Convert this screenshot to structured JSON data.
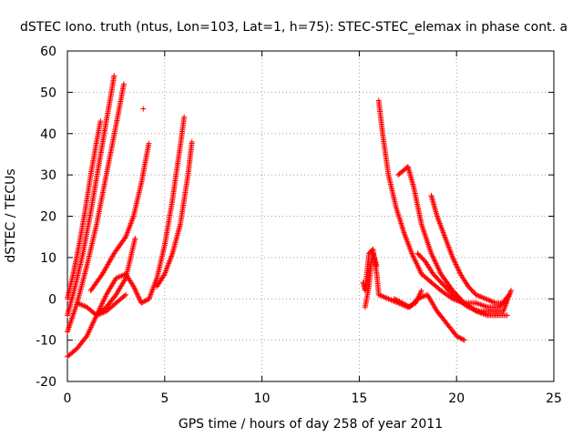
{
  "chart_data": {
    "type": "scatter",
    "title": "dSTEC Iono. truth (ntus, Lon=103, Lat=1, h=75): STEC-STEC_elemax in phase cont. a",
    "xlabel": "GPS time / hours of day 258 of year 2011",
    "ylabel": "dSTEC  / TECUs",
    "xlim": [
      0,
      25
    ],
    "ylim": [
      -20,
      60
    ],
    "x_ticks": [
      0,
      5,
      10,
      15,
      20,
      25
    ],
    "y_ticks": [
      -20,
      -10,
      0,
      10,
      20,
      30,
      40,
      50,
      60
    ],
    "grid": true,
    "marker": "+",
    "color": "#ff0000",
    "series": [
      {
        "x": [
          0.0,
          0.3,
          0.6,
          0.9,
          1.2,
          1.5,
          1.7
        ],
        "y": [
          0,
          6,
          13,
          21,
          30,
          38,
          43
        ]
      },
      {
        "x": [
          0.0,
          0.4,
          0.8,
          1.2,
          1.6,
          2.0,
          2.3,
          2.4
        ],
        "y": [
          -4,
          3,
          11,
          21,
          32,
          43,
          51,
          54
        ]
      },
      {
        "x": [
          0.0,
          0.5,
          1.0,
          1.5,
          2.0,
          2.5,
          2.9
        ],
        "y": [
          -8,
          -1,
          8,
          18,
          30,
          42,
          52
        ]
      },
      {
        "x": [
          0.0,
          0.5,
          1.0,
          1.5,
          2.0,
          2.5,
          3.0
        ],
        "y": [
          -14,
          -12,
          -9,
          -4,
          1,
          5,
          6
        ]
      },
      {
        "x": [
          3.0,
          3.4,
          3.8,
          4.2,
          4.6,
          5.0,
          5.4,
          5.8,
          6.0
        ],
        "y": [
          6,
          3,
          -1,
          0,
          5,
          13,
          24,
          37,
          44
        ]
      },
      {
        "x": [
          1.2,
          1.8,
          2.4,
          3.0,
          3.4,
          3.8,
          4.2,
          4.6,
          5.0,
          5.4,
          5.8,
          6.2,
          6.4
        ],
        "y": [
          2,
          6,
          11,
          15,
          20,
          28,
          38,
          3,
          6,
          11,
          18,
          30,
          38
        ]
      },
      {
        "x": [
          0.5,
          1.0,
          1.5,
          2.0,
          2.5,
          3.0
        ],
        "y": [
          -1,
          -2,
          -4,
          -3,
          -1,
          1
        ]
      },
      {
        "x": [
          1.5,
          2.0,
          2.5,
          3.0,
          3.5,
          3.9
        ],
        "y": [
          -4,
          -2,
          1,
          5,
          15,
          46
        ]
      },
      {
        "x": [
          15.2,
          15.3,
          15.5,
          15.7,
          15.9,
          16.0,
          16.5,
          17.0,
          17.5,
          17.9,
          18.2
        ],
        "y": [
          4,
          2,
          11,
          12,
          6,
          1,
          0,
          -1,
          -2,
          -1,
          2
        ]
      },
      {
        "x": [
          15.3,
          15.5,
          15.6,
          15.7,
          15.9
        ],
        "y": [
          -2,
          3,
          8,
          11,
          8
        ]
      },
      {
        "x": [
          16.0,
          16.2,
          16.5,
          16.9,
          17.3,
          17.7,
          18.2,
          18.7,
          19.2,
          19.8,
          20.4,
          21.0,
          21.6,
          22.2,
          22.7
        ],
        "y": [
          48,
          40,
          30,
          22,
          16,
          11,
          6,
          4,
          2,
          0,
          -1,
          -1,
          -2,
          -2,
          1
        ]
      },
      {
        "x": [
          17.0,
          17.5,
          17.8,
          18.2,
          18.7,
          19.2,
          19.8,
          20.4,
          21.0,
          21.6,
          22.2,
          22.6
        ],
        "y": [
          30,
          32,
          27,
          18,
          11,
          6,
          2,
          -1,
          -3,
          -4,
          -4,
          -4
        ]
      },
      {
        "x": [
          18.0,
          18.4,
          18.8,
          19.4,
          20.0,
          20.6,
          21.2,
          21.8,
          22.4,
          22.8
        ],
        "y": [
          11,
          9,
          6,
          3,
          0,
          -2,
          -3,
          -3,
          -3,
          2
        ]
      },
      {
        "x": [
          18.7,
          19.0,
          19.4,
          19.8,
          20.2,
          20.6,
          21.0,
          21.5,
          22.0,
          22.5
        ],
        "y": [
          25,
          20,
          15,
          10,
          6,
          3,
          1,
          0,
          -1,
          -1
        ]
      },
      {
        "x": [
          16.8,
          17.2,
          17.6,
          18.0,
          18.5,
          19.0,
          19.5,
          20.0,
          20.4
        ],
        "y": [
          0,
          -1,
          -2,
          0,
          1,
          -3,
          -6,
          -9,
          -10
        ]
      }
    ]
  }
}
